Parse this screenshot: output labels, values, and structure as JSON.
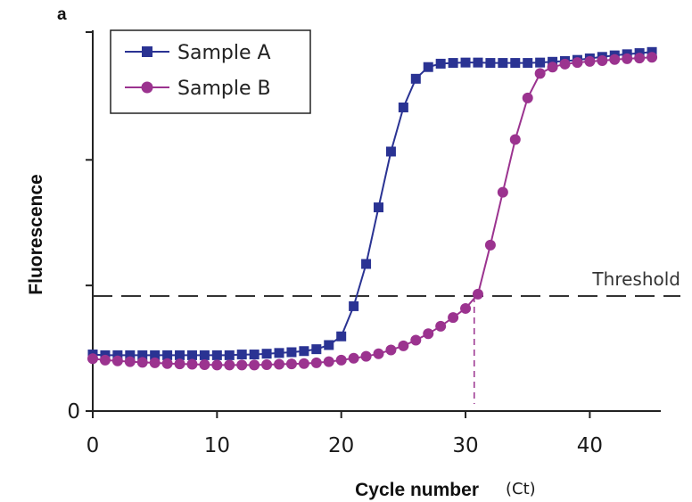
{
  "chart_data": {
    "type": "line",
    "panel_label": "a",
    "title": "",
    "xlabel": "Cycle number",
    "xlabel_suffix": "(Ct)",
    "ylabel": "Fluorescence",
    "xlim": [
      0,
      46
    ],
    "ylim": [
      0,
      100
    ],
    "x_ticks": [
      0,
      10,
      20,
      30,
      40
    ],
    "y_tick_labels": [
      "0"
    ],
    "legend_position": "top-left",
    "grid": false,
    "colors": {
      "sample_a": "#2a3393",
      "sample_b": "#9b338f",
      "threshold": "#333333"
    },
    "threshold": {
      "label": "Threshold",
      "y": 30.5
    },
    "ct_marker": {
      "x": 30.7
    },
    "series": [
      {
        "name": "Sample A",
        "marker": "square",
        "x": [
          0,
          1,
          2,
          3,
          4,
          5,
          6,
          7,
          8,
          9,
          10,
          11,
          12,
          13,
          14,
          15,
          16,
          17,
          18,
          19,
          20,
          21,
          22,
          23,
          24,
          25,
          26,
          27,
          28,
          29,
          30,
          31,
          32,
          33,
          34,
          35,
          36,
          37,
          38,
          39,
          40,
          41,
          42,
          43,
          44,
          45
        ],
        "y": [
          15.0,
          14.8,
          14.8,
          14.8,
          14.8,
          14.8,
          14.8,
          14.8,
          14.8,
          14.8,
          14.8,
          14.8,
          15.0,
          15.0,
          15.2,
          15.4,
          15.6,
          15.9,
          16.4,
          17.5,
          19.8,
          27.8,
          39.0,
          54.0,
          68.8,
          80.5,
          88.1,
          91.2,
          92.1,
          92.3,
          92.4,
          92.4,
          92.3,
          92.3,
          92.3,
          92.3,
          92.4,
          92.6,
          92.8,
          93.1,
          93.5,
          93.9,
          94.3,
          94.6,
          94.9,
          95.2
        ]
      },
      {
        "name": "Sample B",
        "marker": "circle",
        "x": [
          0,
          1,
          2,
          3,
          4,
          5,
          6,
          7,
          8,
          9,
          10,
          11,
          12,
          13,
          14,
          15,
          16,
          17,
          18,
          19,
          20,
          21,
          22,
          23,
          24,
          25,
          26,
          27,
          28,
          29,
          30,
          31,
          32,
          33,
          34,
          35,
          36,
          37,
          38,
          39,
          40,
          41,
          42,
          43,
          44,
          45
        ],
        "y": [
          13.9,
          13.5,
          13.3,
          13.1,
          12.9,
          12.8,
          12.6,
          12.5,
          12.4,
          12.3,
          12.2,
          12.2,
          12.2,
          12.2,
          12.3,
          12.4,
          12.5,
          12.6,
          12.8,
          13.1,
          13.5,
          14.0,
          14.5,
          15.2,
          16.2,
          17.3,
          18.8,
          20.5,
          22.5,
          24.8,
          27.2,
          31.0,
          44.0,
          58.0,
          72.0,
          83.0,
          89.5,
          91.2,
          92.0,
          92.4,
          92.7,
          92.9,
          93.2,
          93.4,
          93.6,
          93.8
        ]
      }
    ]
  }
}
